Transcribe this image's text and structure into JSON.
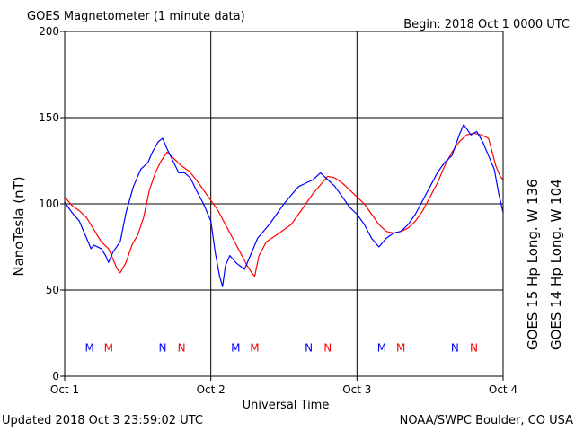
{
  "header": {
    "title": "GOES Magnetometer (1 minute data)",
    "begin": "Begin:  2018 Oct 1 0000 UTC"
  },
  "footer": {
    "updated": "Updated 2018 Oct  3 23:59:02 UTC",
    "source": "NOAA/SWPC Boulder, CO USA"
  },
  "colors": {
    "goes15": "#ff0000",
    "goes14": "#0000ff",
    "grid": "#000000",
    "background": "#ffffff"
  },
  "chart_data": {
    "type": "line",
    "xlabel": "Universal Time",
    "ylabel": "NanoTesla (nT)",
    "ylim": [
      0,
      200
    ],
    "yticks": [
      "0",
      "50",
      "100",
      "150",
      "200"
    ],
    "xlim": [
      0,
      3
    ],
    "xticks": [
      {
        "value": 0,
        "label": "Oct 1"
      },
      {
        "value": 1,
        "label": "Oct 2"
      },
      {
        "value": 2,
        "label": "Oct 3"
      },
      {
        "value": 3,
        "label": "Oct 4"
      }
    ],
    "grid": true,
    "legend_position": "right, vertical",
    "series": [
      {
        "name": "GOES 15 Hp  Long. W 136",
        "color": "#ff0000",
        "points": [
          [
            0,
            104
          ],
          [
            0.05,
            99
          ],
          [
            0.1,
            96
          ],
          [
            0.15,
            92
          ],
          [
            0.2,
            85
          ],
          [
            0.25,
            78
          ],
          [
            0.3,
            74
          ],
          [
            0.33,
            68
          ],
          [
            0.36,
            62
          ],
          [
            0.38,
            60
          ],
          [
            0.42,
            66
          ],
          [
            0.46,
            76
          ],
          [
            0.5,
            82
          ],
          [
            0.54,
            92
          ],
          [
            0.58,
            108
          ],
          [
            0.62,
            118
          ],
          [
            0.66,
            125
          ],
          [
            0.7,
            130
          ],
          [
            0.75,
            126
          ],
          [
            0.8,
            122
          ],
          [
            0.85,
            119
          ],
          [
            0.9,
            114
          ],
          [
            0.95,
            108
          ],
          [
            1.0,
            102
          ],
          [
            1.05,
            96
          ],
          [
            1.1,
            88
          ],
          [
            1.15,
            80
          ],
          [
            1.2,
            72
          ],
          [
            1.25,
            64
          ],
          [
            1.28,
            60
          ],
          [
            1.3,
            58
          ],
          [
            1.33,
            70
          ],
          [
            1.38,
            78
          ],
          [
            1.45,
            82
          ],
          [
            1.55,
            88
          ],
          [
            1.6,
            94
          ],
          [
            1.65,
            100
          ],
          [
            1.7,
            106
          ],
          [
            1.75,
            111
          ],
          [
            1.8,
            116
          ],
          [
            1.85,
            115
          ],
          [
            1.9,
            112
          ],
          [
            1.95,
            108
          ],
          [
            2.0,
            104
          ],
          [
            2.05,
            100
          ],
          [
            2.1,
            94
          ],
          [
            2.15,
            88
          ],
          [
            2.2,
            84
          ],
          [
            2.25,
            83
          ],
          [
            2.3,
            84
          ],
          [
            2.35,
            86
          ],
          [
            2.4,
            90
          ],
          [
            2.45,
            96
          ],
          [
            2.5,
            104
          ],
          [
            2.55,
            112
          ],
          [
            2.6,
            122
          ],
          [
            2.65,
            130
          ],
          [
            2.7,
            136
          ],
          [
            2.75,
            140
          ],
          [
            2.8,
            141
          ],
          [
            2.85,
            140
          ],
          [
            2.9,
            138
          ],
          [
            2.95,
            122
          ],
          [
            2.98,
            116
          ],
          [
            3.0,
            114
          ]
        ]
      },
      {
        "name": "GOES 14 Hp  Long. W 104",
        "color": "#0000ff",
        "points": [
          [
            0,
            101
          ],
          [
            0.05,
            95
          ],
          [
            0.1,
            90
          ],
          [
            0.12,
            86
          ],
          [
            0.15,
            80
          ],
          [
            0.18,
            74
          ],
          [
            0.2,
            76
          ],
          [
            0.25,
            74
          ],
          [
            0.28,
            70
          ],
          [
            0.3,
            66
          ],
          [
            0.33,
            72
          ],
          [
            0.38,
            78
          ],
          [
            0.42,
            95
          ],
          [
            0.47,
            110
          ],
          [
            0.52,
            120
          ],
          [
            0.57,
            124
          ],
          [
            0.6,
            130
          ],
          [
            0.64,
            136
          ],
          [
            0.67,
            138
          ],
          [
            0.7,
            132
          ],
          [
            0.74,
            125
          ],
          [
            0.78,
            118
          ],
          [
            0.82,
            118
          ],
          [
            0.86,
            115
          ],
          [
            0.9,
            108
          ],
          [
            0.95,
            100
          ],
          [
            1.0,
            90
          ],
          [
            1.03,
            72
          ],
          [
            1.06,
            58
          ],
          [
            1.08,
            52
          ],
          [
            1.1,
            64
          ],
          [
            1.13,
            70
          ],
          [
            1.17,
            66
          ],
          [
            1.2,
            64
          ],
          [
            1.23,
            62
          ],
          [
            1.27,
            70
          ],
          [
            1.32,
            80
          ],
          [
            1.4,
            88
          ],
          [
            1.45,
            94
          ],
          [
            1.5,
            100
          ],
          [
            1.55,
            105
          ],
          [
            1.6,
            110
          ],
          [
            1.65,
            112
          ],
          [
            1.7,
            114
          ],
          [
            1.75,
            118
          ],
          [
            1.8,
            114
          ],
          [
            1.85,
            110
          ],
          [
            1.9,
            104
          ],
          [
            1.95,
            98
          ],
          [
            2.0,
            94
          ],
          [
            2.05,
            88
          ],
          [
            2.1,
            80
          ],
          [
            2.15,
            75
          ],
          [
            2.2,
            80
          ],
          [
            2.25,
            83
          ],
          [
            2.3,
            84
          ],
          [
            2.35,
            88
          ],
          [
            2.4,
            94
          ],
          [
            2.45,
            102
          ],
          [
            2.5,
            110
          ],
          [
            2.55,
            118
          ],
          [
            2.6,
            124
          ],
          [
            2.65,
            128
          ],
          [
            2.7,
            140
          ],
          [
            2.73,
            146
          ],
          [
            2.78,
            140
          ],
          [
            2.82,
            142
          ],
          [
            2.86,
            136
          ],
          [
            2.9,
            128
          ],
          [
            2.94,
            120
          ],
          [
            2.97,
            106
          ],
          [
            3.0,
            95
          ]
        ]
      }
    ],
    "markers": [
      {
        "label": "M",
        "x": 0.17,
        "color": "#0000ff"
      },
      {
        "label": "M",
        "x": 0.3,
        "color": "#ff0000"
      },
      {
        "label": "N",
        "x": 0.67,
        "color": "#0000ff"
      },
      {
        "label": "N",
        "x": 0.8,
        "color": "#ff0000"
      },
      {
        "label": "M",
        "x": 1.17,
        "color": "#0000ff"
      },
      {
        "label": "M",
        "x": 1.3,
        "color": "#ff0000"
      },
      {
        "label": "N",
        "x": 1.67,
        "color": "#0000ff"
      },
      {
        "label": "N",
        "x": 1.8,
        "color": "#ff0000"
      },
      {
        "label": "M",
        "x": 2.17,
        "color": "#0000ff"
      },
      {
        "label": "M",
        "x": 2.3,
        "color": "#ff0000"
      },
      {
        "label": "N",
        "x": 2.67,
        "color": "#0000ff"
      },
      {
        "label": "N",
        "x": 2.8,
        "color": "#ff0000"
      }
    ],
    "marker_y": 17
  }
}
